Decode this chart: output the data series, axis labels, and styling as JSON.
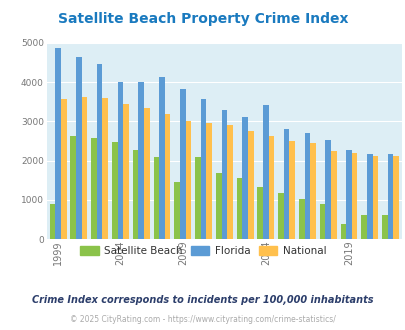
{
  "title": "Satellite Beach Property Crime Index",
  "bar_colors": {
    "satellite_beach": "#8bc34a",
    "florida": "#5b9bd5",
    "national": "#ffc04d"
  },
  "bg_color": "#ddeef5",
  "yticks": [
    0,
    1000,
    2000,
    3000,
    4000,
    5000
  ],
  "xlabel_ticks": [
    1999,
    2004,
    2009,
    2014,
    2019
  ],
  "legend_labels": [
    "Satellite Beach",
    "Florida",
    "National"
  ],
  "subtitle": "Crime Index corresponds to incidents per 100,000 inhabitants",
  "footer": "© 2025 CityRating.com - https://www.cityrating.com/crime-statistics/",
  "title_color": "#1a7abf",
  "subtitle_color": "#2c3e6b",
  "footer_color": "#aaaaaa",
  "years": [
    1999,
    2002,
    2003,
    2004,
    2007,
    2008,
    2009,
    2011,
    2012,
    2013,
    2014,
    2016,
    2017,
    2018,
    2019,
    2020,
    2021
  ],
  "sb": [
    900,
    2620,
    2580,
    2480,
    2280,
    2090,
    1470,
    2090,
    1680,
    1560,
    1330,
    1170,
    1020,
    890,
    380,
    620,
    620
  ],
  "florida": [
    4880,
    4650,
    4450,
    4010,
    4000,
    4130,
    3830,
    3560,
    3290,
    3120,
    3410,
    2820,
    2710,
    2530,
    2270,
    2160,
    2160
  ],
  "national": [
    3580,
    3620,
    3590,
    3440,
    3330,
    3190,
    3010,
    2960,
    2900,
    2750,
    2640,
    2500,
    2460,
    2250,
    2190,
    2120,
    2120
  ]
}
